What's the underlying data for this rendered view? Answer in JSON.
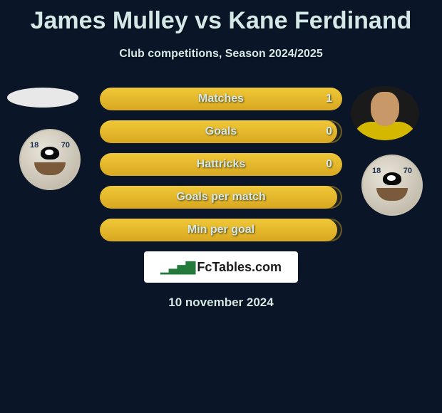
{
  "title": "James Mulley vs Kane Ferdinand",
  "subtitle": "Club competitions, Season 2024/2025",
  "date": "10 november 2024",
  "branding": "FcTables.com",
  "colors": {
    "background": "#0a1628",
    "text": "#d4e8e8",
    "bar_fill_top": "#f0c838",
    "bar_fill_bottom": "#d8a820",
    "bar_border": "#8c7828",
    "brand_box": "#ffffff",
    "brand_icon": "#237a3a"
  },
  "stats": [
    {
      "label": "Matches",
      "value": "1",
      "fill_pct": 100
    },
    {
      "label": "Goals",
      "value": "0",
      "fill_pct": 98
    },
    {
      "label": "Hattricks",
      "value": "0",
      "fill_pct": 100
    },
    {
      "label": "Goals per match",
      "value": "",
      "fill_pct": 98
    },
    {
      "label": "Min per goal",
      "value": "",
      "fill_pct": 98
    }
  ],
  "player_left": {
    "name": "James Mulley",
    "avatar_shape": "ellipse-placeholder"
  },
  "player_right": {
    "name": "Kane Ferdinand",
    "shirt_color": "#d4b800"
  },
  "club_badge": {
    "numbers": [
      "18",
      "70"
    ],
    "type": "bird-over-bridge"
  }
}
